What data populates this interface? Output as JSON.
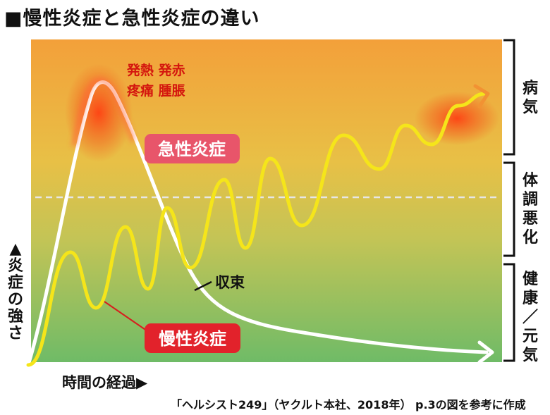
{
  "title": "■慢性炎症と急性炎症の違い",
  "symptoms": {
    "line1": "発熱 発赤",
    "line2": "疼痛 腫脹"
  },
  "acute_label": "急性炎症",
  "chronic_label": "慢性炎症",
  "resolution_label": "収束",
  "brackets": {
    "disease": "病気",
    "poor_condition": "体調悪化",
    "healthy": "健康／元気"
  },
  "y_axis_label": "▲炎症の強さ",
  "x_axis_label": "時間の経過▶",
  "source": "「ヘルシスト249」（ヤクルト本社、2018年） p.3の図を参考に作成",
  "colors": {
    "acute_curve": "#ffffff",
    "chronic_curve": "#f5e51a",
    "label_box": "#e2222b",
    "acute_box": "#e8556a",
    "symptom_text": "#d4160e"
  }
}
